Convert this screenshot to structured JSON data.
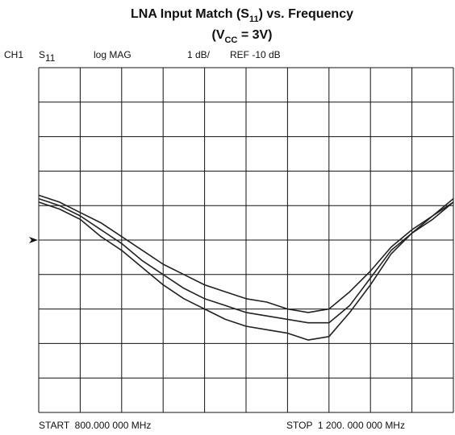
{
  "chart_data": {
    "type": "line",
    "title": [
      "LNA Input Match (S",
      "11",
      ") vs. Frequency"
    ],
    "subtitle": [
      "(V",
      "CC",
      " = 3V)"
    ],
    "header": {
      "channel": "CH1",
      "param": [
        "S",
        "11"
      ],
      "format": "log MAG",
      "scale": "1 dB/",
      "ref": "REF -10 dB"
    },
    "start_label": "START  800.000 000 MHz",
    "stop_label": "STOP  1 200. 000 000 MHz",
    "ref_level": -10,
    "xlim": [
      800,
      1200
    ],
    "ylim": [
      -15,
      -5
    ],
    "xticks": [
      800,
      840,
      880,
      920,
      960,
      1000,
      1040,
      1080,
      1120,
      1160,
      1200
    ],
    "yticks": [
      -15,
      -14,
      -13,
      -12,
      -11,
      -10,
      -9,
      -8,
      -7,
      -6,
      -5
    ],
    "grid": true,
    "x": [
      800,
      820,
      840,
      860,
      880,
      900,
      920,
      940,
      960,
      980,
      1000,
      1020,
      1040,
      1060,
      1080,
      1100,
      1120,
      1140,
      1160,
      1180,
      1200
    ],
    "series": [
      {
        "color": "#222222",
        "values": [
          -8.7,
          -8.9,
          -9.2,
          -9.5,
          -9.9,
          -10.3,
          -10.7,
          -11.0,
          -11.3,
          -11.5,
          -11.7,
          -11.8,
          -12.0,
          -12.1,
          -12.0,
          -11.5,
          -10.9,
          -10.2,
          -9.7,
          -9.3,
          -8.8
        ]
      },
      {
        "color": "#222222",
        "values": [
          -8.8,
          -9.0,
          -9.3,
          -9.7,
          -10.1,
          -10.6,
          -11.0,
          -11.4,
          -11.7,
          -11.9,
          -12.1,
          -12.2,
          -12.3,
          -12.4,
          -12.4,
          -11.9,
          -11.1,
          -10.3,
          -9.8,
          -9.3,
          -8.9
        ]
      },
      {
        "color": "#222222",
        "values": [
          -8.9,
          -9.1,
          -9.4,
          -9.9,
          -10.3,
          -10.8,
          -11.3,
          -11.7,
          -12.0,
          -12.3,
          -12.5,
          -12.6,
          -12.7,
          -12.9,
          -12.8,
          -12.1,
          -11.3,
          -10.4,
          -9.8,
          -9.4,
          -8.9
        ]
      }
    ]
  }
}
